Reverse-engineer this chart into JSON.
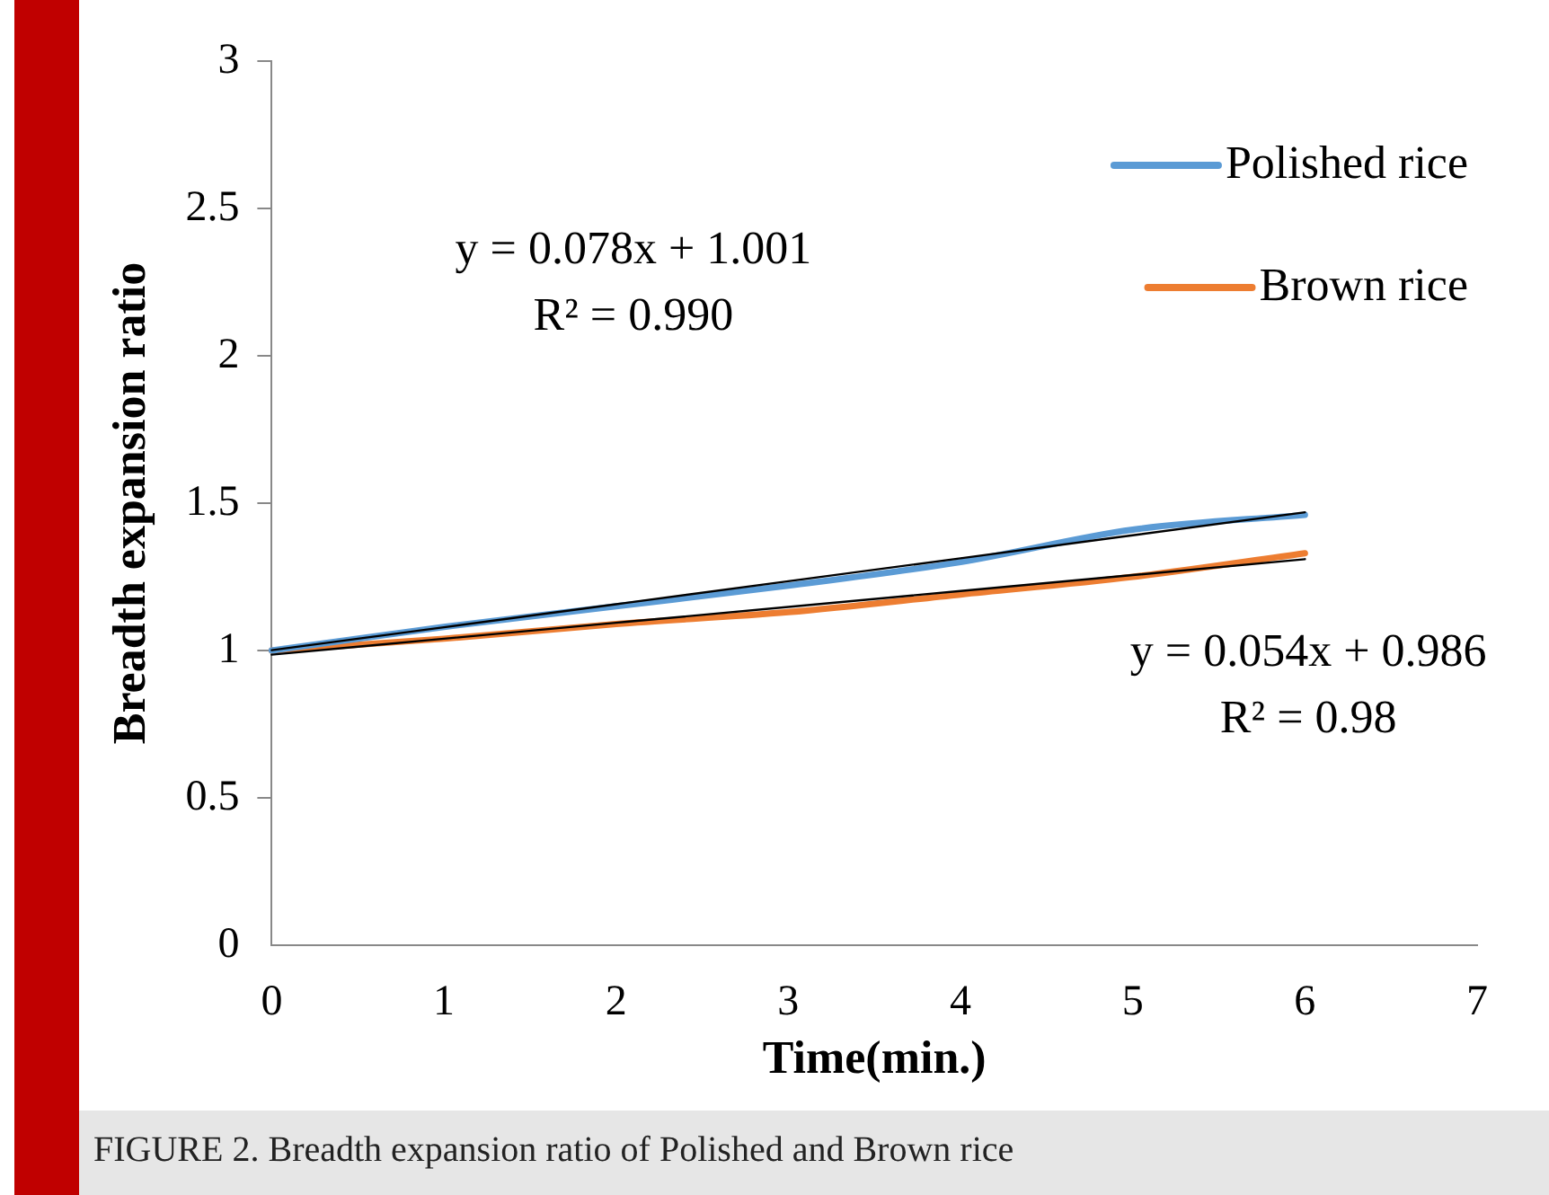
{
  "chart_data": {
    "type": "line",
    "xlabel": "Time(min.)",
    "ylabel": "Breadth expansion ratio",
    "x": [
      0,
      1,
      2,
      3,
      4,
      5,
      6
    ],
    "series": [
      {
        "name": "Polished rice",
        "color": "#5b9bd5",
        "values": [
          1.0,
          1.08,
          1.15,
          1.22,
          1.3,
          1.41,
          1.46
        ]
      },
      {
        "name": "Brown rice",
        "color": "#ed7d31",
        "values": [
          1.0,
          1.04,
          1.09,
          1.13,
          1.19,
          1.25,
          1.33
        ]
      },
      {
        "type": "line",
        "color": "#000000",
        "values": [
          1.001,
          1.079,
          1.157,
          1.235,
          1.313,
          1.391,
          1.469
        ]
      },
      {
        "type": "line",
        "color": "#000000",
        "values": [
          0.986,
          1.04,
          1.094,
          1.148,
          1.202,
          1.256,
          1.31
        ]
      }
    ],
    "xlim": [
      0,
      7
    ],
    "xticks": [
      0,
      1,
      2,
      3,
      4,
      5,
      6,
      7
    ],
    "ylim": [
      0,
      3
    ],
    "yticks": [
      0,
      0.5,
      1,
      1.5,
      2,
      2.5,
      3
    ],
    "grid": false,
    "legend": "top right",
    "marker": "none",
    "line_style": "solid",
    "annotations": [
      "y = 0.078x + 1.001",
      "R² = 0.990",
      "y = 0.054x + 0.986",
      "R² = 0.98",
      "FIGURE 2. Breadth expansion ratio of Polished and Brown rice"
    ]
  }
}
